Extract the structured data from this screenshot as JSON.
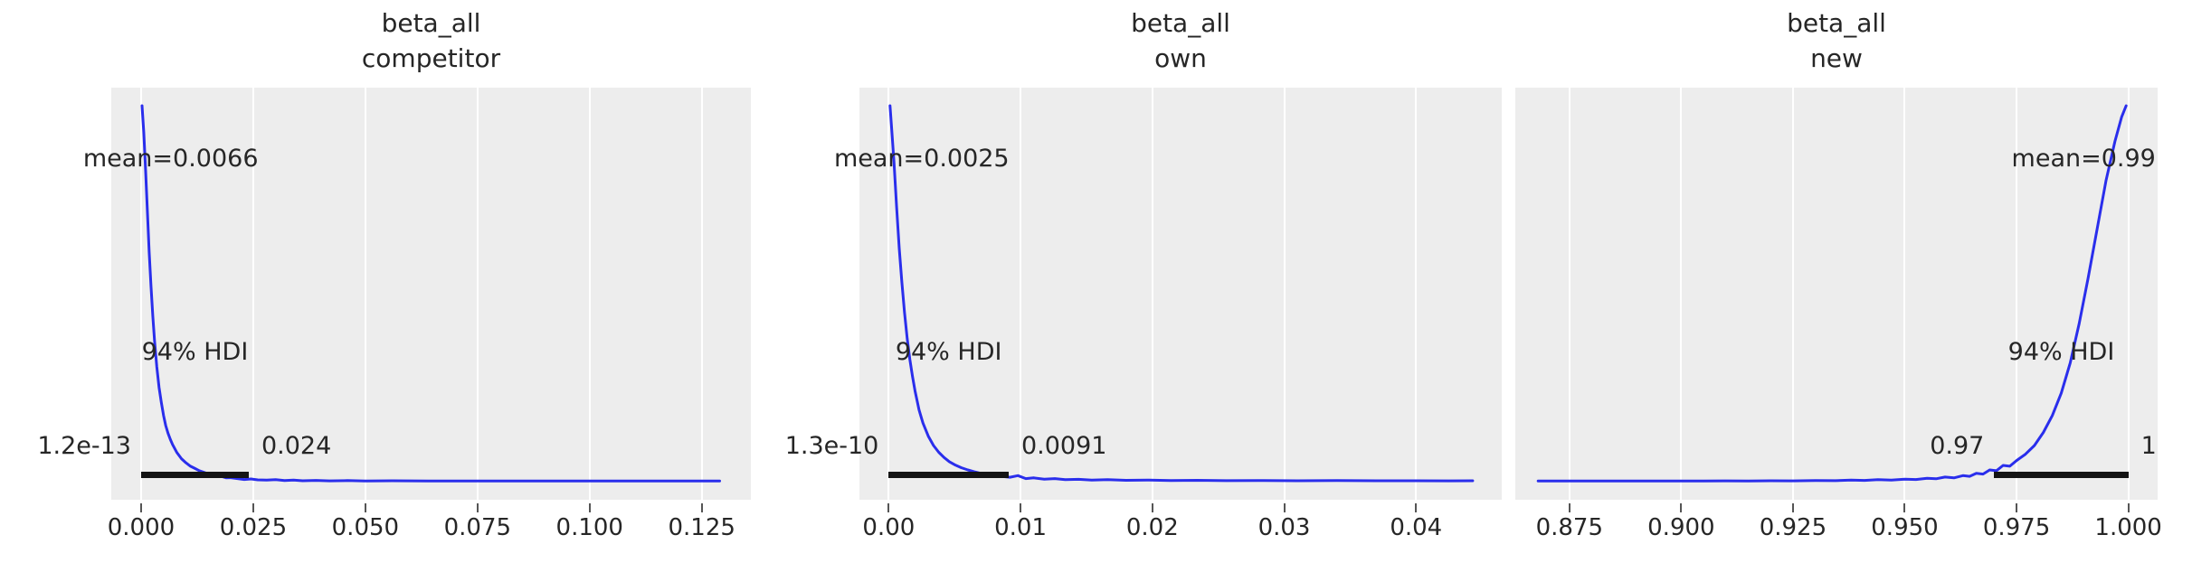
{
  "figure": {
    "kind": "arviz-posterior-kde-grid",
    "background": "#ffffff"
  },
  "style": {
    "axes_bg": "#ededed",
    "grid_color": "#ffffff",
    "line_color": "#2a2eec",
    "hdi_bar_color": "#141414",
    "text_color": "#262626",
    "tick_color": "#555555"
  },
  "chart_data": [
    {
      "type": "kde",
      "title_line1": "beta_all",
      "title_line2": "competitor",
      "mean_label": "mean=0.0066",
      "mean_value": 0.0066,
      "hdi_label": "94% HDI",
      "hdi_lower_label": "1.2e-13",
      "hdi_upper_label": "0.024",
      "hdi_lower_value": 1.2e-13,
      "hdi_upper_value": 0.024,
      "xlim": [
        -0.00665,
        0.13595
      ],
      "xticks": [
        0.0,
        0.025,
        0.05,
        0.075,
        0.1,
        0.125
      ],
      "xtick_labels": [
        "0.000",
        "0.025",
        "0.050",
        "0.075",
        "0.100",
        "0.125"
      ],
      "curve": [
        [
          0.0002,
          1.0
        ],
        [
          0.0006,
          0.93
        ],
        [
          0.001,
          0.83
        ],
        [
          0.0014,
          0.72
        ],
        [
          0.0018,
          0.61
        ],
        [
          0.0022,
          0.52
        ],
        [
          0.0026,
          0.44
        ],
        [
          0.003,
          0.375
        ],
        [
          0.0035,
          0.305
        ],
        [
          0.004,
          0.25
        ],
        [
          0.0045,
          0.21
        ],
        [
          0.005,
          0.175
        ],
        [
          0.0055,
          0.148
        ],
        [
          0.006,
          0.128
        ],
        [
          0.0065,
          0.112
        ],
        [
          0.007,
          0.098
        ],
        [
          0.008,
          0.076
        ],
        [
          0.009,
          0.06
        ],
        [
          0.01,
          0.049
        ],
        [
          0.011,
          0.04
        ],
        [
          0.012,
          0.034
        ],
        [
          0.013,
          0.028
        ],
        [
          0.014,
          0.0235
        ],
        [
          0.015,
          0.0195
        ],
        [
          0.016,
          0.0185
        ],
        [
          0.017,
          0.014
        ],
        [
          0.018,
          0.0125
        ],
        [
          0.019,
          0.009
        ],
        [
          0.02,
          0.0095
        ],
        [
          0.0215,
          0.007
        ],
        [
          0.023,
          0.0045
        ],
        [
          0.0245,
          0.006
        ],
        [
          0.026,
          0.0035
        ],
        [
          0.028,
          0.0028
        ],
        [
          0.03,
          0.0042
        ],
        [
          0.032,
          0.002
        ],
        [
          0.034,
          0.0032
        ],
        [
          0.036,
          0.0012
        ],
        [
          0.039,
          0.0022
        ],
        [
          0.042,
          0.001
        ],
        [
          0.046,
          0.0018
        ],
        [
          0.05,
          0.0008
        ],
        [
          0.056,
          0.0012
        ],
        [
          0.064,
          0.0006
        ],
        [
          0.072,
          0.0008
        ],
        [
          0.08,
          0.0005
        ],
        [
          0.09,
          0.0007
        ],
        [
          0.1,
          0.0005
        ],
        [
          0.11,
          0.0006
        ],
        [
          0.12,
          0.0005
        ],
        [
          0.129,
          0.0006
        ]
      ]
    },
    {
      "type": "kde",
      "title_line1": "beta_all",
      "title_line2": "own",
      "mean_label": "mean=0.0025",
      "mean_value": 0.0025,
      "hdi_label": "94% HDI",
      "hdi_lower_label": "1.3e-10",
      "hdi_upper_label": "0.0091",
      "hdi_lower_value": 1.3e-10,
      "hdi_upper_value": 0.0091,
      "xlim": [
        -0.00222,
        0.0465
      ],
      "xticks": [
        0.0,
        0.01,
        0.02,
        0.03,
        0.04
      ],
      "xtick_labels": [
        "0.00",
        "0.01",
        "0.02",
        "0.03",
        "0.04"
      ],
      "curve": [
        [
          0.0001,
          1.0
        ],
        [
          0.0002,
          0.95
        ],
        [
          0.0004,
          0.85
        ],
        [
          0.0006,
          0.73
        ],
        [
          0.0008,
          0.62
        ],
        [
          0.001,
          0.53
        ],
        [
          0.0012,
          0.45
        ],
        [
          0.0014,
          0.38
        ],
        [
          0.0016,
          0.325
        ],
        [
          0.0018,
          0.28
        ],
        [
          0.002,
          0.24
        ],
        [
          0.0023,
          0.19
        ],
        [
          0.0026,
          0.155
        ],
        [
          0.003,
          0.12
        ],
        [
          0.0034,
          0.095
        ],
        [
          0.0038,
          0.077
        ],
        [
          0.0042,
          0.063
        ],
        [
          0.0046,
          0.052
        ],
        [
          0.005,
          0.044
        ],
        [
          0.0055,
          0.036
        ],
        [
          0.006,
          0.03
        ],
        [
          0.0065,
          0.025
        ],
        [
          0.007,
          0.021
        ],
        [
          0.0075,
          0.0175
        ],
        [
          0.008,
          0.015
        ],
        [
          0.0086,
          0.0125
        ],
        [
          0.0092,
          0.0105
        ],
        [
          0.0098,
          0.015
        ],
        [
          0.0104,
          0.007
        ],
        [
          0.011,
          0.009
        ],
        [
          0.0118,
          0.0055
        ],
        [
          0.0126,
          0.007
        ],
        [
          0.0134,
          0.004
        ],
        [
          0.0144,
          0.005
        ],
        [
          0.0154,
          0.003
        ],
        [
          0.0166,
          0.004
        ],
        [
          0.018,
          0.0025
        ],
        [
          0.0196,
          0.0032
        ],
        [
          0.0214,
          0.0018
        ],
        [
          0.0234,
          0.0025
        ],
        [
          0.0256,
          0.0015
        ],
        [
          0.028,
          0.002
        ],
        [
          0.031,
          0.0013
        ],
        [
          0.034,
          0.0016
        ],
        [
          0.037,
          0.0011
        ],
        [
          0.04,
          0.0013
        ],
        [
          0.0425,
          0.001
        ],
        [
          0.0443,
          0.0012
        ]
      ]
    },
    {
      "type": "kde",
      "title_line1": "beta_all",
      "title_line2": "new",
      "mean_label": "mean=0.99",
      "mean_value": 0.99,
      "hdi_label": "94% HDI",
      "hdi_lower_label": "0.97",
      "hdi_upper_label": "1",
      "hdi_lower_value": 0.97,
      "hdi_upper_value": 1.0,
      "xlim": [
        0.8629,
        1.00655
      ],
      "xticks": [
        0.875,
        0.9,
        0.925,
        0.95,
        0.975,
        1.0
      ],
      "xtick_labels": [
        "0.875",
        "0.900",
        "0.925",
        "0.950",
        "0.975",
        "1.000"
      ],
      "curve": [
        [
          0.868,
          0.0006
        ],
        [
          0.88,
          0.0006
        ],
        [
          0.89,
          0.0007
        ],
        [
          0.9,
          0.0008
        ],
        [
          0.905,
          0.0006
        ],
        [
          0.91,
          0.001
        ],
        [
          0.915,
          0.0008
        ],
        [
          0.92,
          0.0012
        ],
        [
          0.925,
          0.001
        ],
        [
          0.93,
          0.0018
        ],
        [
          0.9345,
          0.0014
        ],
        [
          0.938,
          0.0028
        ],
        [
          0.941,
          0.0022
        ],
        [
          0.944,
          0.004
        ],
        [
          0.947,
          0.0032
        ],
        [
          0.95,
          0.0055
        ],
        [
          0.9525,
          0.0045
        ],
        [
          0.955,
          0.008
        ],
        [
          0.957,
          0.0065
        ],
        [
          0.959,
          0.011
        ],
        [
          0.961,
          0.009
        ],
        [
          0.963,
          0.015
        ],
        [
          0.9645,
          0.013
        ],
        [
          0.966,
          0.021
        ],
        [
          0.9675,
          0.019
        ],
        [
          0.969,
          0.03
        ],
        [
          0.9705,
          0.028
        ],
        [
          0.972,
          0.042
        ],
        [
          0.9735,
          0.04
        ],
        [
          0.975,
          0.055
        ],
        [
          0.977,
          0.072
        ],
        [
          0.979,
          0.095
        ],
        [
          0.981,
          0.13
        ],
        [
          0.983,
          0.175
        ],
        [
          0.985,
          0.235
        ],
        [
          0.987,
          0.315
        ],
        [
          0.989,
          0.42
        ],
        [
          0.991,
          0.54
        ],
        [
          0.993,
          0.67
        ],
        [
          0.995,
          0.8
        ],
        [
          0.997,
          0.905
        ],
        [
          0.9985,
          0.97
        ],
        [
          0.9995,
          1.0
        ]
      ]
    }
  ]
}
